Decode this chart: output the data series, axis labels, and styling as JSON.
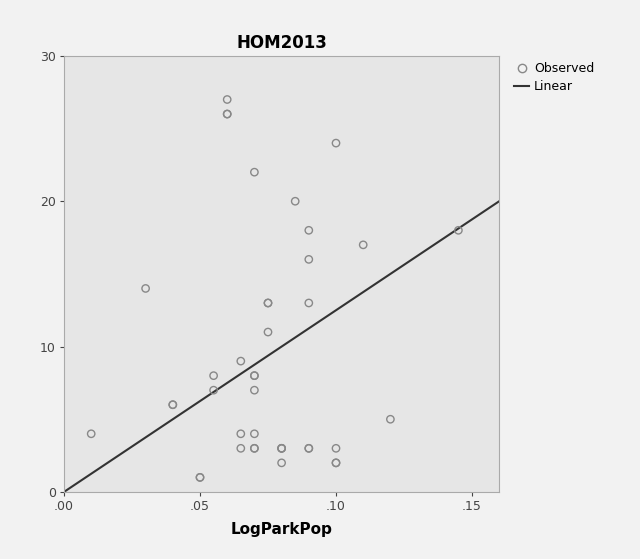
{
  "title": "HOM2013",
  "xlabel": "LogParkPop",
  "ylabel": "",
  "xlim": [
    0.0,
    0.16
  ],
  "ylim": [
    0,
    30
  ],
  "xticks": [
    0.0,
    0.05,
    0.1,
    0.15
  ],
  "xtick_labels": [
    ".00",
    ".05",
    ".10",
    ".15"
  ],
  "yticks": [
    0,
    10,
    20,
    30
  ],
  "plot_bg_color": "#e6e6e6",
  "fig_bg_color": "#f2f2f2",
  "scatter_facecolor": "none",
  "scatter_edgecolor": "#888888",
  "scatter_size": 28,
  "scatter_linewidth": 1.0,
  "line_color": "#333333",
  "line_x": [
    0.0,
    0.16
  ],
  "line_y": [
    0.0,
    20.0
  ],
  "points_x": [
    0.01,
    0.03,
    0.04,
    0.04,
    0.05,
    0.05,
    0.055,
    0.055,
    0.06,
    0.06,
    0.06,
    0.065,
    0.065,
    0.065,
    0.07,
    0.07,
    0.07,
    0.07,
    0.07,
    0.07,
    0.07,
    0.075,
    0.075,
    0.075,
    0.08,
    0.08,
    0.08,
    0.08,
    0.085,
    0.09,
    0.09,
    0.09,
    0.09,
    0.09,
    0.1,
    0.1,
    0.1,
    0.1,
    0.11,
    0.12,
    0.145
  ],
  "points_y": [
    4,
    14,
    6,
    6,
    1,
    1,
    8,
    7,
    27,
    26,
    26,
    4,
    3,
    9,
    22,
    8,
    8,
    7,
    3,
    3,
    4,
    13,
    13,
    11,
    3,
    2,
    3,
    3,
    20,
    18,
    16,
    13,
    3,
    3,
    24,
    3,
    2,
    2,
    17,
    5,
    18
  ],
  "title_fontsize": 12,
  "label_fontsize": 11,
  "tick_fontsize": 9,
  "legend_fontsize": 9
}
